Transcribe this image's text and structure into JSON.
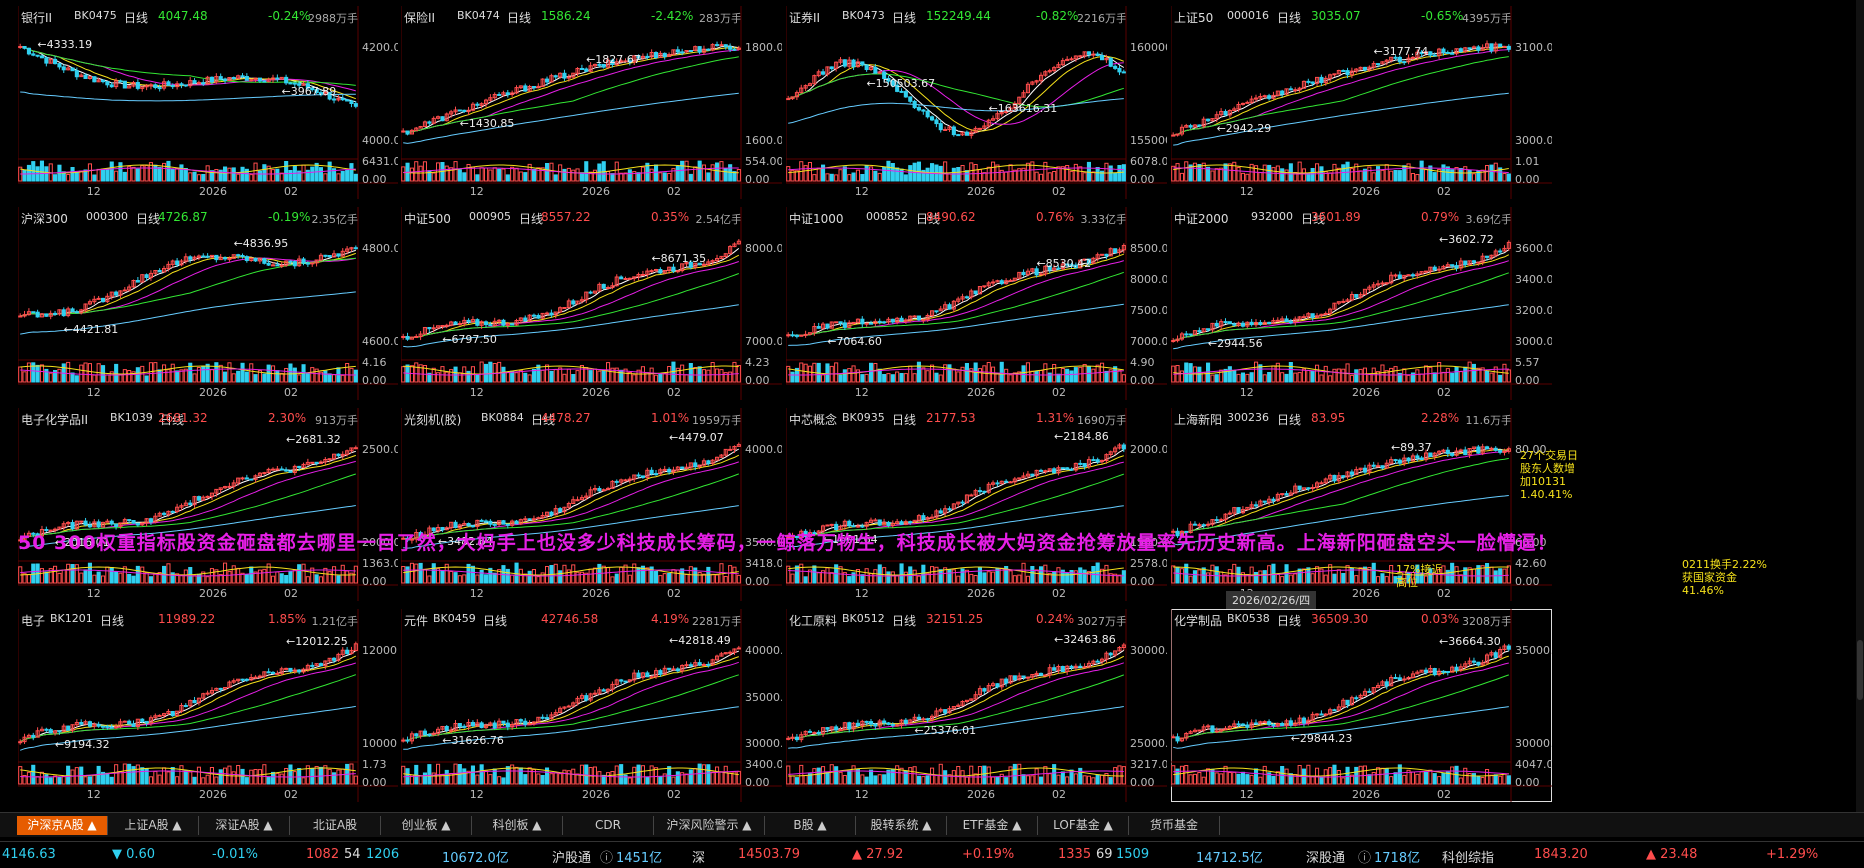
{
  "colors": {
    "up": "#ff4d4d",
    "down": "#30d0f0",
    "ma1": "#ffffff",
    "ma2": "#f5e11b",
    "ma3": "#e61fe6",
    "ma4": "#33e633",
    "ma5": "#66ccff",
    "grid": "#3a0000",
    "accent": "#e65c00"
  },
  "panels": [
    {
      "name": "银行II",
      "code": "BK0475",
      "period": "日线",
      "price": "4047.48",
      "pct": "-0.24%",
      "vol": "2988万手",
      "y_ticks": [
        "4200.00",
        "4000.00"
      ],
      "vol_ticks": [
        "6431.00",
        "0.00"
      ],
      "x_ticks": [
        "12",
        "2026",
        "02"
      ],
      "high_label": "4333.19",
      "low_label": "3967.89",
      "trend": "down_end",
      "high_x": 0.05,
      "low_x": 0.78
    },
    {
      "name": "保险II",
      "code": "BK0474",
      "period": "日线",
      "price": "1586.24",
      "pct": "-2.42%",
      "vol": "283万手",
      "y_ticks": [
        "1800.00",
        "1600.00"
      ],
      "vol_ticks": [
        "554.00",
        "0.00"
      ],
      "x_ticks": [
        "12",
        "2026",
        "02"
      ],
      "high_label": "1827.67",
      "low_label": "1430.85",
      "trend": "up_peak",
      "high_x": 0.54,
      "low_x": 0.17
    },
    {
      "name": "证券II",
      "code": "BK0473",
      "period": "日线",
      "price": "152249.44",
      "pct": "-0.82%",
      "vol": "2216万手",
      "y_ticks": [
        "160000",
        "155000"
      ],
      "vol_ticks": [
        "6078.00",
        "0.00"
      ],
      "x_ticks": [
        "12",
        "2026",
        "02"
      ],
      "high_label": "163616.31",
      "low_label": "150503.67",
      "trend": "volatile",
      "high_x": 0.6,
      "low_x": 0.24
    },
    {
      "name": "上证50",
      "code": "000016",
      "period": "日线",
      "price": "3035.07",
      "pct": "-0.65%",
      "vol": "4395万手",
      "y_ticks": [
        "3100.00",
        "3000.00"
      ],
      "vol_ticks": [
        "1.01",
        "0.00"
      ],
      "x_ticks": [
        "12",
        "2026",
        "02"
      ],
      "high_label": "3177.74",
      "low_label": "2942.29",
      "trend": "up_peak",
      "high_x": 0.6,
      "low_x": 0.13
    },
    {
      "name": "沪深300",
      "code": "000300",
      "period": "日线",
      "price": "4726.87",
      "pct": "-0.19%",
      "vol": "2.35亿手",
      "y_ticks": [
        "4800.00",
        "4600.00"
      ],
      "vol_ticks": [
        "4.16",
        "0.00"
      ],
      "x_ticks": [
        "12",
        "2026",
        "02"
      ],
      "high_label": "4836.95",
      "low_label": "4421.81",
      "trend": "up_flat",
      "high_x": 0.64,
      "low_x": 0.13
    },
    {
      "name": "中证500",
      "code": "000905",
      "period": "日线",
      "price": "8557.22",
      "pct": "0.35%",
      "vol": "2.54亿手",
      "y_ticks": [
        "8000.00",
        "7000.00"
      ],
      "vol_ticks": [
        "4.23",
        "0.00"
      ],
      "x_ticks": [
        "12",
        "2026",
        "02"
      ],
      "high_label": "8671.35",
      "low_label": "6797.50",
      "trend": "up",
      "high_x": 0.74,
      "low_x": 0.12
    },
    {
      "name": "中证1000",
      "code": "000852",
      "period": "日线",
      "price": "8490.62",
      "pct": "0.76%",
      "vol": "3.33亿手",
      "y_ticks": [
        "8500.00",
        "8000.00",
        "7500.00",
        "7000.00"
      ],
      "vol_ticks": [
        "4.90",
        "0.00"
      ],
      "x_ticks": [
        "12",
        "2026",
        "02"
      ],
      "high_label": "8530.42",
      "low_label": "7064.60",
      "trend": "up",
      "high_x": 0.74,
      "low_x": 0.12
    },
    {
      "name": "中证2000",
      "code": "932000",
      "period": "日线",
      "price": "3601.89",
      "pct": "0.79%",
      "vol": "3.69亿手",
      "y_ticks": [
        "3600.00",
        "3400.00",
        "3200.00",
        "3000.00"
      ],
      "vol_ticks": [
        "5.57",
        "0.00"
      ],
      "x_ticks": [
        "12",
        "2026",
        "02"
      ],
      "high_label": "3602.72",
      "low_label": "2944.56",
      "trend": "up",
      "high_x": 0.97,
      "low_x": 0.11
    },
    {
      "name": "电子化学品II",
      "code": "BK1039",
      "period": "日线",
      "price": "2681.32",
      "pct": "2.30%",
      "vol": "913万手",
      "y_ticks": [
        "2500.00",
        "2000.00"
      ],
      "vol_ticks": [
        "1363.00",
        "0.00"
      ],
      "x_ticks": [
        "12",
        "2026",
        "02"
      ],
      "high_label": "2681.32",
      "low_label": "2016.01",
      "trend": "up",
      "high_x": 0.97,
      "low_x": 0.1
    },
    {
      "name": "光刻机(胶)",
      "code": "BK0884",
      "period": "日线",
      "price": "4478.27",
      "pct": "1.01%",
      "vol": "1959万手",
      "y_ticks": [
        "4000.00",
        "3500.00"
      ],
      "vol_ticks": [
        "3418.00",
        "0.00"
      ],
      "x_ticks": [
        "12",
        "2026",
        "02"
      ],
      "high_label": "4479.07",
      "low_label": "3482.64",
      "trend": "up",
      "high_x": 0.97,
      "low_x": 0.1
    },
    {
      "name": "中芯概念",
      "code": "BK0935",
      "period": "日线",
      "price": "2177.53",
      "pct": "1.31%",
      "vol": "1690万手",
      "y_ticks": [
        "2000.00",
        "1500.00"
      ],
      "vol_ticks": [
        "2578.00",
        "0.00"
      ],
      "x_ticks": [
        "12",
        "2026",
        "02"
      ],
      "high_label": "2184.86",
      "low_label": "1601.64",
      "trend": "up",
      "high_x": 0.97,
      "low_x": 0.1
    },
    {
      "name": "上海新阳",
      "code": "300236",
      "period": "日线",
      "price": "83.95",
      "pct": "2.28%",
      "vol": "11.6万手",
      "y_ticks": [
        "80.00",
        "60.00"
      ],
      "vol_ticks": [
        "42.60",
        "0.00"
      ],
      "x_ticks": [
        "12",
        "2026",
        "02"
      ],
      "high_label": "89.37",
      "low_label": "",
      "trend": "up_peak",
      "high_x": 0.65,
      "low_x": 0.1
    },
    {
      "name": "电子",
      "code": "BK1201",
      "period": "日线",
      "price": "11989.22",
      "pct": "1.85%",
      "vol": "1.21亿手",
      "y_ticks": [
        "12000.00",
        "10000.00"
      ],
      "vol_ticks": [
        "1.73",
        "0.00"
      ],
      "x_ticks": [
        "12",
        "2026",
        "02"
      ],
      "high_label": "12012.25",
      "low_label": "9194.32",
      "trend": "up",
      "high_x": 0.97,
      "low_x": 0.11
    },
    {
      "name": "元件",
      "code": "BK0459",
      "period": "日线",
      "price": "42746.58",
      "pct": "4.19%",
      "vol": "2281万手",
      "y_ticks": [
        "40000.00",
        "35000.00",
        "30000.00"
      ],
      "vol_ticks": [
        "3400.00",
        "0.00"
      ],
      "x_ticks": [
        "12",
        "2026",
        "02"
      ],
      "high_label": "42818.49",
      "low_label": "31626.76",
      "trend": "up",
      "high_x": 0.97,
      "low_x": 0.12
    },
    {
      "name": "化工原料",
      "code": "BK0512",
      "period": "日线",
      "price": "32151.25",
      "pct": "0.24%",
      "vol": "3027万手",
      "y_ticks": [
        "30000.00",
        "25000.00"
      ],
      "vol_ticks": [
        "3217.00",
        "0.00"
      ],
      "x_ticks": [
        "12",
        "2026",
        "02"
      ],
      "high_label": "32463.86",
      "low_label": "25376.01",
      "trend": "up",
      "high_x": 0.97,
      "low_x": 0.38
    },
    {
      "name": "化学制品",
      "code": "BK0538",
      "period": "日线",
      "price": "36509.30",
      "pct": "0.03%",
      "vol": "3208万手",
      "y_ticks": [
        "35000.00",
        "30000.00"
      ],
      "vol_ticks": [
        "4047.00",
        "0.00"
      ],
      "x_ticks": [
        "12",
        "2026",
        "02"
      ],
      "high_label": "36664.30",
      "low_label": "29844.23",
      "trend": "up",
      "high_x": 0.95,
      "low_x": 0.35
    }
  ],
  "overlay_text": "50 300权重指标股资金砸盘都去哪里一目了然，大妈手上也没多少科技成长筹码，一鲸落万物生，科技成长被大妈资金抢筹放量率先历史新高。上海新阳砸盘空头一脸懵逼！",
  "date_tag": "2026/02/26/四",
  "annotations": {
    "a1": "27个交易日",
    "a2": "股东人数增",
    "a3": "加10131",
    "a4": "1.40.41%",
    "a5": "0211换手2.22%",
    "a6": "获国家资金",
    "a7": "17%接近",
    "a8": "高位",
    "a9": "41.46%"
  },
  "tabs": [
    "沪深京A股",
    "上证A股",
    "深证A股",
    "北证A股",
    "创业板",
    "科创板",
    "CDR",
    "沪深风险警示",
    "B股",
    "股转系统",
    "ETF基金",
    "LOF基金",
    "货币基金"
  ],
  "status": {
    "sh_index": "4146.63",
    "sh_change": "▼ 0.60",
    "sh_pct": "-0.01%",
    "sh_up": "1082",
    "sh_flat": "54",
    "sh_down": "1206",
    "sh_amount": "10672.0亿",
    "hgt_label": "沪股通",
    "hgt_value": "1451亿",
    "sz_label": "深",
    "sz_index": "14503.79",
    "sz_change": "▲ 27.92",
    "sz_pct": "+0.19%",
    "sz_up": "1335",
    "sz_flat": "69",
    "sz_down": "1509",
    "sz_amount": "14712.5亿",
    "sgt_label": "深股通",
    "sgt_value": "1718亿",
    "kc_label": "科创综指",
    "kc_index": "1843.20",
    "kc_change": "▲ 23.48",
    "kc_pct": "+1.29%"
  }
}
